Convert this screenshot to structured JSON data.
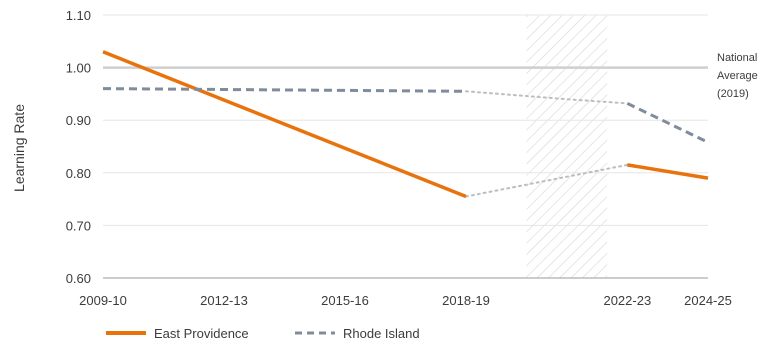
{
  "chart_data": {
    "type": "line",
    "ylabel": "Learning Rate",
    "xlabel": "",
    "ylim": [
      0.6,
      1.1
    ],
    "yticks": [
      "0.60",
      "0.70",
      "0.80",
      "0.90",
      "1.00",
      "1.10"
    ],
    "x_categories": [
      "2009-10",
      "2012-13",
      "2015-16",
      "2018-19",
      "2022-23",
      "2024-25"
    ],
    "x_tick_years": [
      2009,
      2012,
      2015,
      2018,
      2022,
      2024
    ],
    "xlim_years": [
      2009,
      2024
    ],
    "grid": "horizontal",
    "reference_line": {
      "label": [
        "National",
        "Average",
        "(2019)"
      ],
      "value": 1.0,
      "color": "#cfcfcf"
    },
    "gap_band": {
      "from_year": 2019.5,
      "to_year": 2021.5
    },
    "series": [
      {
        "name": "East Providence",
        "color": "#e8720c",
        "style": "solid",
        "segments": [
          [
            [
              2009,
              1.03
            ],
            [
              2018,
              0.755
            ]
          ],
          [
            [
              2022,
              0.815
            ],
            [
              2024,
              0.79
            ]
          ]
        ],
        "gap_connector": [
          [
            2018,
            0.755
          ],
          [
            2022,
            0.815
          ]
        ]
      },
      {
        "name": "Rhode Island",
        "color": "#7f8c9b",
        "style": "dashed",
        "segments": [
          [
            [
              2009,
              0.96
            ],
            [
              2018,
              0.955
            ]
          ],
          [
            [
              2022,
              0.932
            ],
            [
              2024,
              0.858
            ]
          ]
        ],
        "gap_connector": [
          [
            2018,
            0.955
          ],
          [
            2020.5,
            0.94
          ],
          [
            2022,
            0.932
          ]
        ]
      }
    ],
    "legend_position": "bottom-left"
  }
}
